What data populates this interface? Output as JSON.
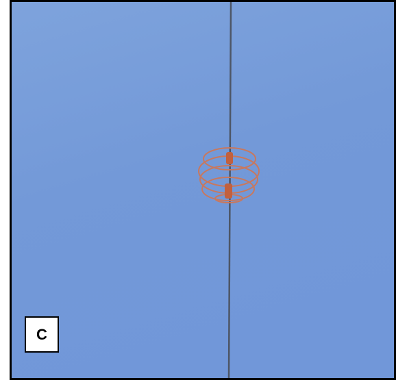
{
  "label": "C"
}
